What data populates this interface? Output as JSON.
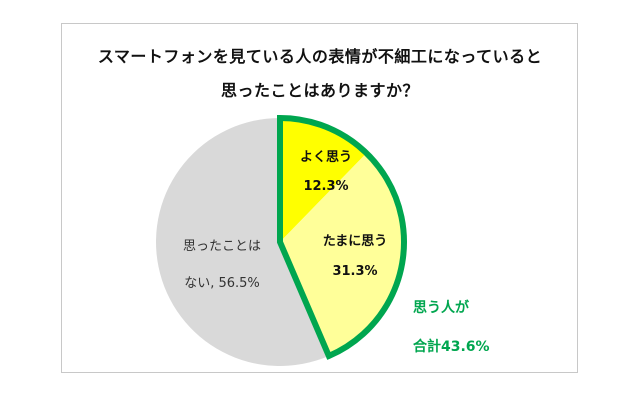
{
  "title_line1": "スマートフォンを見ている人の表情が不細工になっていると",
  "title_line2": "思ったことはありますか？",
  "colors": {
    "often": "#ffff00",
    "sometimes": "#ffff99",
    "never": "#d9d9d9",
    "highlight": "#00a64f"
  },
  "chart_data": {
    "type": "pie",
    "title": "スマートフォンを見ている人の表情が不細工になっていると 思ったことはありますか？",
    "slices": [
      {
        "label": "よく思う",
        "value": 12.3,
        "value_label": "12.3%"
      },
      {
        "label": "たまに思う",
        "value": 31.3,
        "value_label": "31.3%"
      },
      {
        "label": "思ったことはない",
        "value": 56.5,
        "value_label": "思ったことは",
        "value_label2": "ない, 56.5%"
      }
    ],
    "annotation": {
      "line1": "思う人が",
      "line2": "合計43.6%"
    }
  }
}
